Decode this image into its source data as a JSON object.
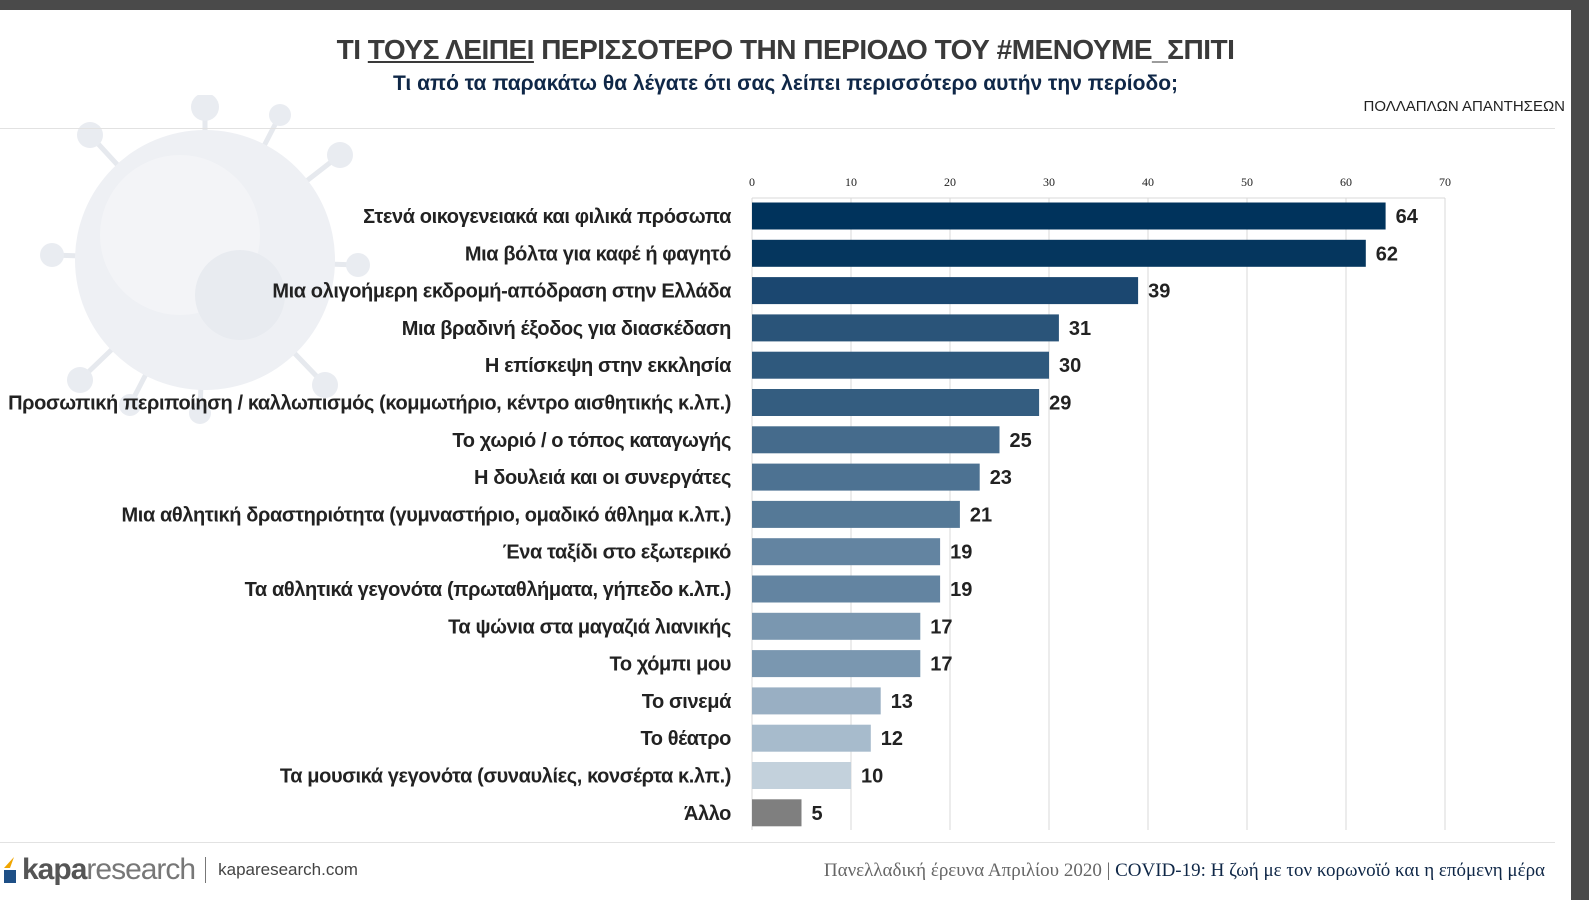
{
  "header": {
    "title_part1": "ΤΙ ",
    "title_underlined": "ΤΟΥΣ ΛΕΙΠΕΙ",
    "title_part2": " ΠΕΡΙΣΣΟΤΕΡΟ ΤΗΝ ΠΕΡΙΟΔΟ ΤΟΥ #ΜΕΝΟΥΜΕ_ΣΠΙΤΙ",
    "subtitle": "Τι από τα παρακάτω θα λέγατε ότι σας λείπει περισσότερο αυτήν την περίοδο;",
    "note": "ΠΟΛΛΑΠΛΩΝ ΑΠΑΝΤΗΣΕΩΝ"
  },
  "chart_data": {
    "type": "bar",
    "orientation": "horizontal",
    "xlim": [
      0,
      70
    ],
    "xticks": [
      0,
      10,
      20,
      30,
      40,
      50,
      60,
      70
    ],
    "grid": true,
    "categories": [
      "Στενά οικογενειακά και φιλικά πρόσωπα",
      "Μια βόλτα για καφέ ή φαγητό",
      "Μια ολιγοήμερη εκδρομή-απόδραση στην Ελλάδα",
      "Μια βραδινή έξοδος για διασκέδαση",
      "Η επίσκεψη στην εκκλησία",
      "Προσωπική περιποίηση / καλλωπισμός (κομμωτήριο, κέντρο αισθητικής κ.λπ.)",
      "Το χωριό / ο τόπος καταγωγής",
      "Η δουλειά και οι συνεργάτες",
      "Μια αθλητική δραστηριότητα (γυμναστήριο, ομαδικό άθλημα κ.λπ.)",
      "Ένα ταξίδι στο εξωτερικό",
      "Τα αθλητικά γεγονότα (πρωταθλήματα, γήπεδο κ.λπ.)",
      "Τα ψώνια στα μαγαζιά λιανικής",
      "Το χόμπι μου",
      "Το σινεμά",
      "Το θέατρο",
      "Τα μουσικά γεγονότα (συναυλίες, κονσέρτα κ.λπ.)",
      "Άλλο"
    ],
    "values": [
      64,
      62,
      39,
      31,
      30,
      29,
      25,
      23,
      21,
      19,
      19,
      17,
      17,
      13,
      12,
      10,
      5
    ],
    "colors": [
      "#00335c",
      "#05365e",
      "#1b4770",
      "#2a5479",
      "#2f597d",
      "#345d80",
      "#456b8c",
      "#4d7292",
      "#557997",
      "#6384a1",
      "#6384a1",
      "#7a97b0",
      "#7a97b0",
      "#99afc3",
      "#a7bbcc",
      "#c3d1dc",
      "#7f7f7f"
    ]
  },
  "footer": {
    "logo_kapa": "kapa",
    "logo_research": "research",
    "logo_url": "kaparesearch.com",
    "survey": "Πανελλαδική έρευνα Απριλίου 2020 | ",
    "study": "COVID-19: Η ζωή με τον κορωνοϊό και η επόμενη μέρα"
  }
}
